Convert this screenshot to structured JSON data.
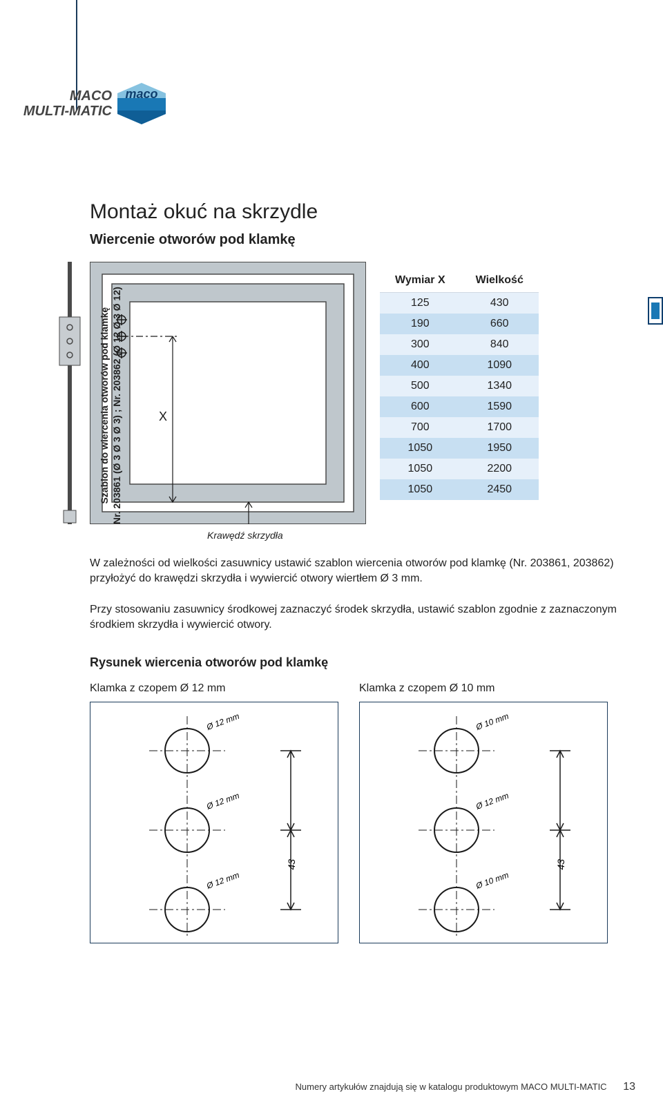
{
  "brand": {
    "line1": "MACO",
    "line2": "MULTI-MATIC",
    "logo_text": "maco",
    "logo_colors": {
      "top": "#86c2e0",
      "mid": "#1978b5",
      "bottom": "#0f5e96",
      "text": "#0f3f6e"
    }
  },
  "title": "Montaż okuć na skrzydle",
  "subtitle": "Wiercenie otworów pod klamkę",
  "side_label": {
    "line1": "Szablon do wiercenia otworów pod klamkę",
    "line2": "Nr. 203861 (Ø 3 Ø 3 Ø 3) ; Nr. 203862 (Ø 12 Ø 3 Ø 12)"
  },
  "window": {
    "x_label": "X",
    "outer_fill": "#bfc7cc",
    "inner_fill": "#ffffff",
    "stroke": "#4a4a4a"
  },
  "edge_label": "Krawędź skrzydła",
  "table": {
    "headers": [
      "Wymiar X",
      "Wielkość"
    ],
    "rows": [
      [
        "125",
        "430"
      ],
      [
        "190",
        "660"
      ],
      [
        "300",
        "840"
      ],
      [
        "400",
        "1090"
      ],
      [
        "500",
        "1340"
      ],
      [
        "600",
        "1590"
      ],
      [
        "700",
        "1700"
      ],
      [
        "1050",
        "1950"
      ],
      [
        "1050",
        "2200"
      ],
      [
        "1050",
        "2450"
      ]
    ],
    "band_colors": {
      "a": "#e6f0fa",
      "b": "#c7dff2"
    }
  },
  "para1": "W zależności od wielkości zasuwnicy ustawić szablon wiercenia otworów pod klamkę (Nr. 203861, 203862) przyłożyć do krawędzi skrzydła i wywiercić otwory wiertłem Ø 3 mm.",
  "para2": "Przy stosowaniu zasuwnicy środkowej zaznaczyć środek skrzydła, ustawić szablon zgodnie z zaznaczonym środkiem skrzydła i wywiercić otwory.",
  "section2_title": "Rysunek wiercenia otworów pod klamkę",
  "drill_left": {
    "title": "Klamka z czopem Ø 12 mm",
    "d_top": "Ø 12 mm",
    "d_mid": "Ø 12 mm",
    "d_bot": "Ø 12 mm",
    "dim": "43"
  },
  "drill_right": {
    "title": "Klamka z czopem Ø 10 mm",
    "d_top": "Ø 10 mm",
    "d_mid": "Ø 12 mm",
    "d_bot": "Ø 10 mm",
    "dim": "43"
  },
  "drill_style": {
    "circle_stroke": "#1a1a1a",
    "circle_stroke_width": 2,
    "centerline_dash": "6 4",
    "label_fontsize": 12
  },
  "footer": {
    "text": "Numery artykułów znajdują się w katalogu produktowym MACO MULTI-MATIC",
    "page": "13"
  }
}
